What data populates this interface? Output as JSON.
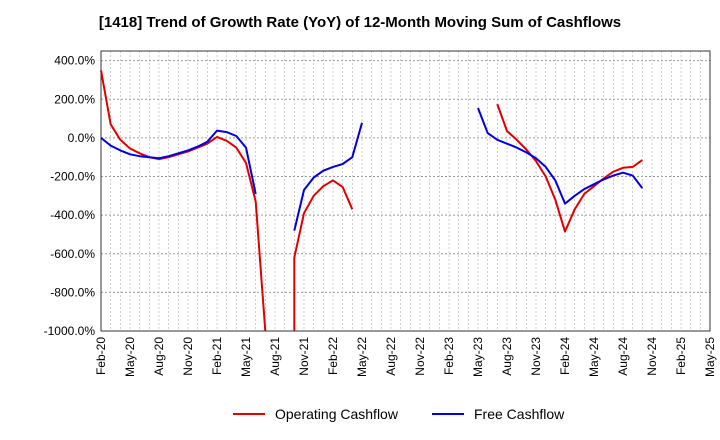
{
  "chart_data": {
    "type": "line",
    "title": "[1418]  Trend of Growth Rate (YoY) of 12-Month Moving Sum of Cashflows",
    "xlabel": "",
    "ylabel": "",
    "x_ticks": [
      "Feb-20",
      "May-20",
      "Aug-20",
      "Nov-20",
      "Feb-21",
      "May-21",
      "Aug-21",
      "Nov-21",
      "Feb-22",
      "May-22",
      "Aug-22",
      "Nov-22",
      "Feb-23",
      "May-23",
      "Aug-23",
      "Nov-23",
      "Feb-24",
      "May-24",
      "Aug-24",
      "Nov-24",
      "Feb-25",
      "May-25"
    ],
    "y_ticks": [
      "400.0%",
      "200.0%",
      "0.0%",
      "-200.0%",
      "-400.0%",
      "-600.0%",
      "-800.0%",
      "-1000.0%"
    ],
    "ylim": [
      -1000,
      450
    ],
    "y_unit": "%",
    "grid": true,
    "legend_position": "bottom",
    "series": [
      {
        "name": "Operating Cashflow",
        "color": "#e00000",
        "points": [
          [
            "2020-02",
            350
          ],
          [
            "2020-03",
            70
          ],
          [
            "2020-04",
            -10
          ],
          [
            "2020-05",
            -55
          ],
          [
            "2020-06",
            -80
          ],
          [
            "2020-07",
            -100
          ],
          [
            "2020-08",
            -110
          ],
          [
            "2020-09",
            -100
          ],
          [
            "2020-10",
            -85
          ],
          [
            "2020-11",
            -70
          ],
          [
            "2020-12",
            -50
          ],
          [
            "2021-01",
            -30
          ],
          [
            "2021-02",
            5
          ],
          [
            "2021-03",
            -15
          ],
          [
            "2021-04",
            -50
          ],
          [
            "2021-05",
            -130
          ],
          [
            "2021-06",
            -330
          ],
          [
            "2021-07",
            -1000
          ],
          null,
          [
            "2021-10",
            -1000
          ],
          [
            "2021-10",
            -620
          ],
          [
            "2021-11",
            -390
          ],
          [
            "2021-12",
            -300
          ],
          [
            "2022-01",
            -250
          ],
          [
            "2022-02",
            -220
          ],
          [
            "2022-03",
            -255
          ],
          [
            "2022-04",
            -370
          ],
          null,
          [
            "2023-07",
            175
          ],
          [
            "2023-08",
            35
          ],
          [
            "2023-09",
            -10
          ],
          [
            "2023-10",
            -60
          ],
          [
            "2023-11",
            -120
          ],
          [
            "2023-12",
            -200
          ],
          [
            "2024-01",
            -320
          ],
          [
            "2024-02",
            -485
          ],
          [
            "2024-03",
            -370
          ],
          [
            "2024-04",
            -290
          ],
          [
            "2024-05",
            -250
          ],
          [
            "2024-06",
            -210
          ],
          [
            "2024-07",
            -175
          ],
          [
            "2024-08",
            -155
          ],
          [
            "2024-09",
            -150
          ],
          [
            "2024-10",
            -115
          ]
        ]
      },
      {
        "name": "Free Cashflow",
        "color": "#0000e0",
        "points": [
          [
            "2020-02",
            0
          ],
          [
            "2020-03",
            -40
          ],
          [
            "2020-04",
            -65
          ],
          [
            "2020-05",
            -85
          ],
          [
            "2020-06",
            -95
          ],
          [
            "2020-07",
            -100
          ],
          [
            "2020-08",
            -105
          ],
          [
            "2020-09",
            -95
          ],
          [
            "2020-10",
            -80
          ],
          [
            "2020-11",
            -65
          ],
          [
            "2020-12",
            -45
          ],
          [
            "2021-01",
            -20
          ],
          [
            "2021-02",
            38
          ],
          [
            "2021-03",
            30
          ],
          [
            "2021-04",
            10
          ],
          [
            "2021-05",
            -50
          ],
          [
            "2021-06",
            -290
          ],
          null,
          [
            "2021-10",
            -480
          ],
          [
            "2021-11",
            -270
          ],
          [
            "2021-12",
            -205
          ],
          [
            "2022-01",
            -170
          ],
          [
            "2022-02",
            -150
          ],
          [
            "2022-03",
            -135
          ],
          [
            "2022-04",
            -100
          ],
          [
            "2022-05",
            78
          ],
          null,
          [
            "2023-05",
            155
          ],
          [
            "2023-06",
            25
          ],
          [
            "2023-07",
            -10
          ],
          [
            "2023-08",
            -30
          ],
          [
            "2023-09",
            -50
          ],
          [
            "2023-10",
            -75
          ],
          [
            "2023-11",
            -105
          ],
          [
            "2023-12",
            -150
          ],
          [
            "2024-01",
            -220
          ],
          [
            "2024-02",
            -340
          ],
          [
            "2024-03",
            -300
          ],
          [
            "2024-04",
            -265
          ],
          [
            "2024-05",
            -240
          ],
          [
            "2024-06",
            -215
          ],
          [
            "2024-07",
            -195
          ],
          [
            "2024-08",
            -180
          ],
          [
            "2024-09",
            -195
          ],
          [
            "2024-10",
            -260
          ]
        ]
      }
    ]
  }
}
